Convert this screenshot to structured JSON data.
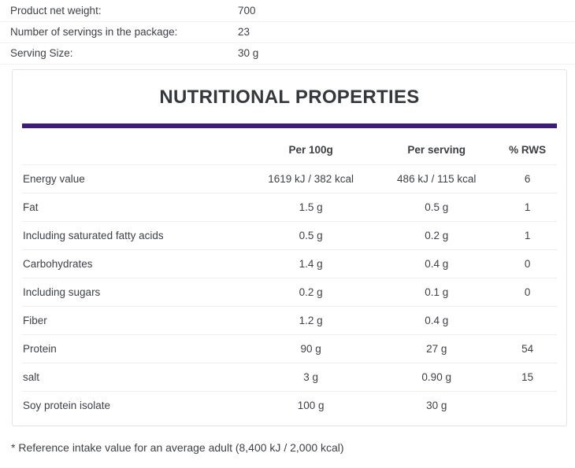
{
  "product_info": {
    "rows": [
      {
        "label": "Product net weight:",
        "value": "700"
      },
      {
        "label": "Number of servings in the package:",
        "value": "23"
      },
      {
        "label": "Serving Size:",
        "value": "30 g"
      }
    ]
  },
  "nutrition": {
    "title": "NUTRITIONAL PROPERTIES",
    "columns": [
      "Per 100g",
      "Per serving",
      "% RWS"
    ],
    "rows": [
      {
        "name": "Energy value",
        "per_100g": "1619 kJ / 382 kcal",
        "per_serving": "486 kJ / 115 kcal",
        "rws": "6"
      },
      {
        "name": "Fat",
        "per_100g": "1.5 g",
        "per_serving": "0.5 g",
        "rws": "1"
      },
      {
        "name": "Including saturated fatty acids",
        "per_100g": "0.5 g",
        "per_serving": "0.2 g",
        "rws": "1"
      },
      {
        "name": "Carbohydrates",
        "per_100g": "1.4 g",
        "per_serving": "0.4 g",
        "rws": "0"
      },
      {
        "name": "Including sugars",
        "per_100g": "0.2 g",
        "per_serving": "0.1 g",
        "rws": "0"
      },
      {
        "name": "Fiber",
        "per_100g": "1.2 g",
        "per_serving": "0.4 g",
        "rws": ""
      },
      {
        "name": "Protein",
        "per_100g": "90 g",
        "per_serving": "27 g",
        "rws": "54"
      },
      {
        "name": "salt",
        "per_100g": "3 g",
        "per_serving": "0.90 g",
        "rws": "15"
      },
      {
        "name": "Soy protein isolate",
        "per_100g": "100 g",
        "per_serving": "30 g",
        "rws": ""
      }
    ]
  },
  "footnote": "* Reference intake value for an average adult (8,400 kJ / 2,000 kcal)",
  "colors": {
    "accent": "#3c1a7e",
    "text": "#3e4147",
    "box_border": "#e3e3e3",
    "row_border": "#ededed"
  }
}
